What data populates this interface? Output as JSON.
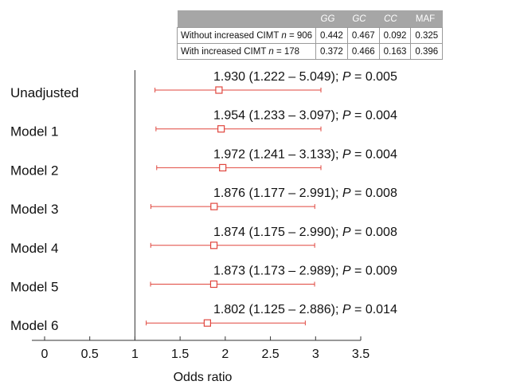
{
  "genotype_table": {
    "headers": [
      "",
      "GG",
      "GC",
      "CC",
      "MAF"
    ],
    "rows": [
      {
        "group_label": "Without increased CIMT",
        "n_label": "n",
        "n_value": " = 906",
        "values": [
          "0.442",
          "0.467",
          "0.092",
          "0.325"
        ]
      },
      {
        "group_label": "With increased CIMT",
        "n_label": "n",
        "n_value": " = 178",
        "values": [
          "0.372",
          "0.466",
          "0.163",
          "0.396"
        ]
      }
    ]
  },
  "chart_data": {
    "type": "forest",
    "xlabel": "Odds ratio",
    "xlim": [
      0,
      3.5
    ],
    "xticks": [
      0,
      0.5,
      1,
      1.5,
      2,
      2.5,
      3,
      3.5
    ],
    "xtick_labels": [
      "0",
      "0.5",
      "1",
      "1.5",
      "2",
      "2.5",
      "3",
      "3.5"
    ],
    "reference_line": 1,
    "p_symbol": "P",
    "colors": {
      "estimate": "#e0463e",
      "axis": "#333333"
    },
    "rows": [
      {
        "label": "Unadjusted",
        "or": 1.93,
        "lower": 1.222,
        "upper": 5.049,
        "ci_text": "1.930 (1.222 – 5.049); ",
        "p_text": " = 0.005"
      },
      {
        "label": "Model 1",
        "or": 1.954,
        "lower": 1.233,
        "upper": 3.097,
        "ci_text": "1.954 (1.233 – 3.097); ",
        "p_text": " = 0.004"
      },
      {
        "label": "Model 2",
        "or": 1.972,
        "lower": 1.241,
        "upper": 3.133,
        "ci_text": "1.972 (1.241 – 3.133); ",
        "p_text": " = 0.004"
      },
      {
        "label": "Model 3",
        "or": 1.876,
        "lower": 1.177,
        "upper": 2.991,
        "ci_text": "1.876 (1.177 – 2.991); ",
        "p_text": " = 0.008"
      },
      {
        "label": "Model 4",
        "or": 1.874,
        "lower": 1.175,
        "upper": 2.99,
        "ci_text": "1.874 (1.175 – 2.990); ",
        "p_text": " = 0.008"
      },
      {
        "label": "Model 5",
        "or": 1.873,
        "lower": 1.173,
        "upper": 2.989,
        "ci_text": "1.873 (1.173 – 2.989); ",
        "p_text": " = 0.009"
      },
      {
        "label": "Model 6",
        "or": 1.802,
        "lower": 1.125,
        "upper": 2.886,
        "ci_text": "1.802 (1.125 – 2.886); ",
        "p_text": " = 0.014"
      }
    ]
  }
}
